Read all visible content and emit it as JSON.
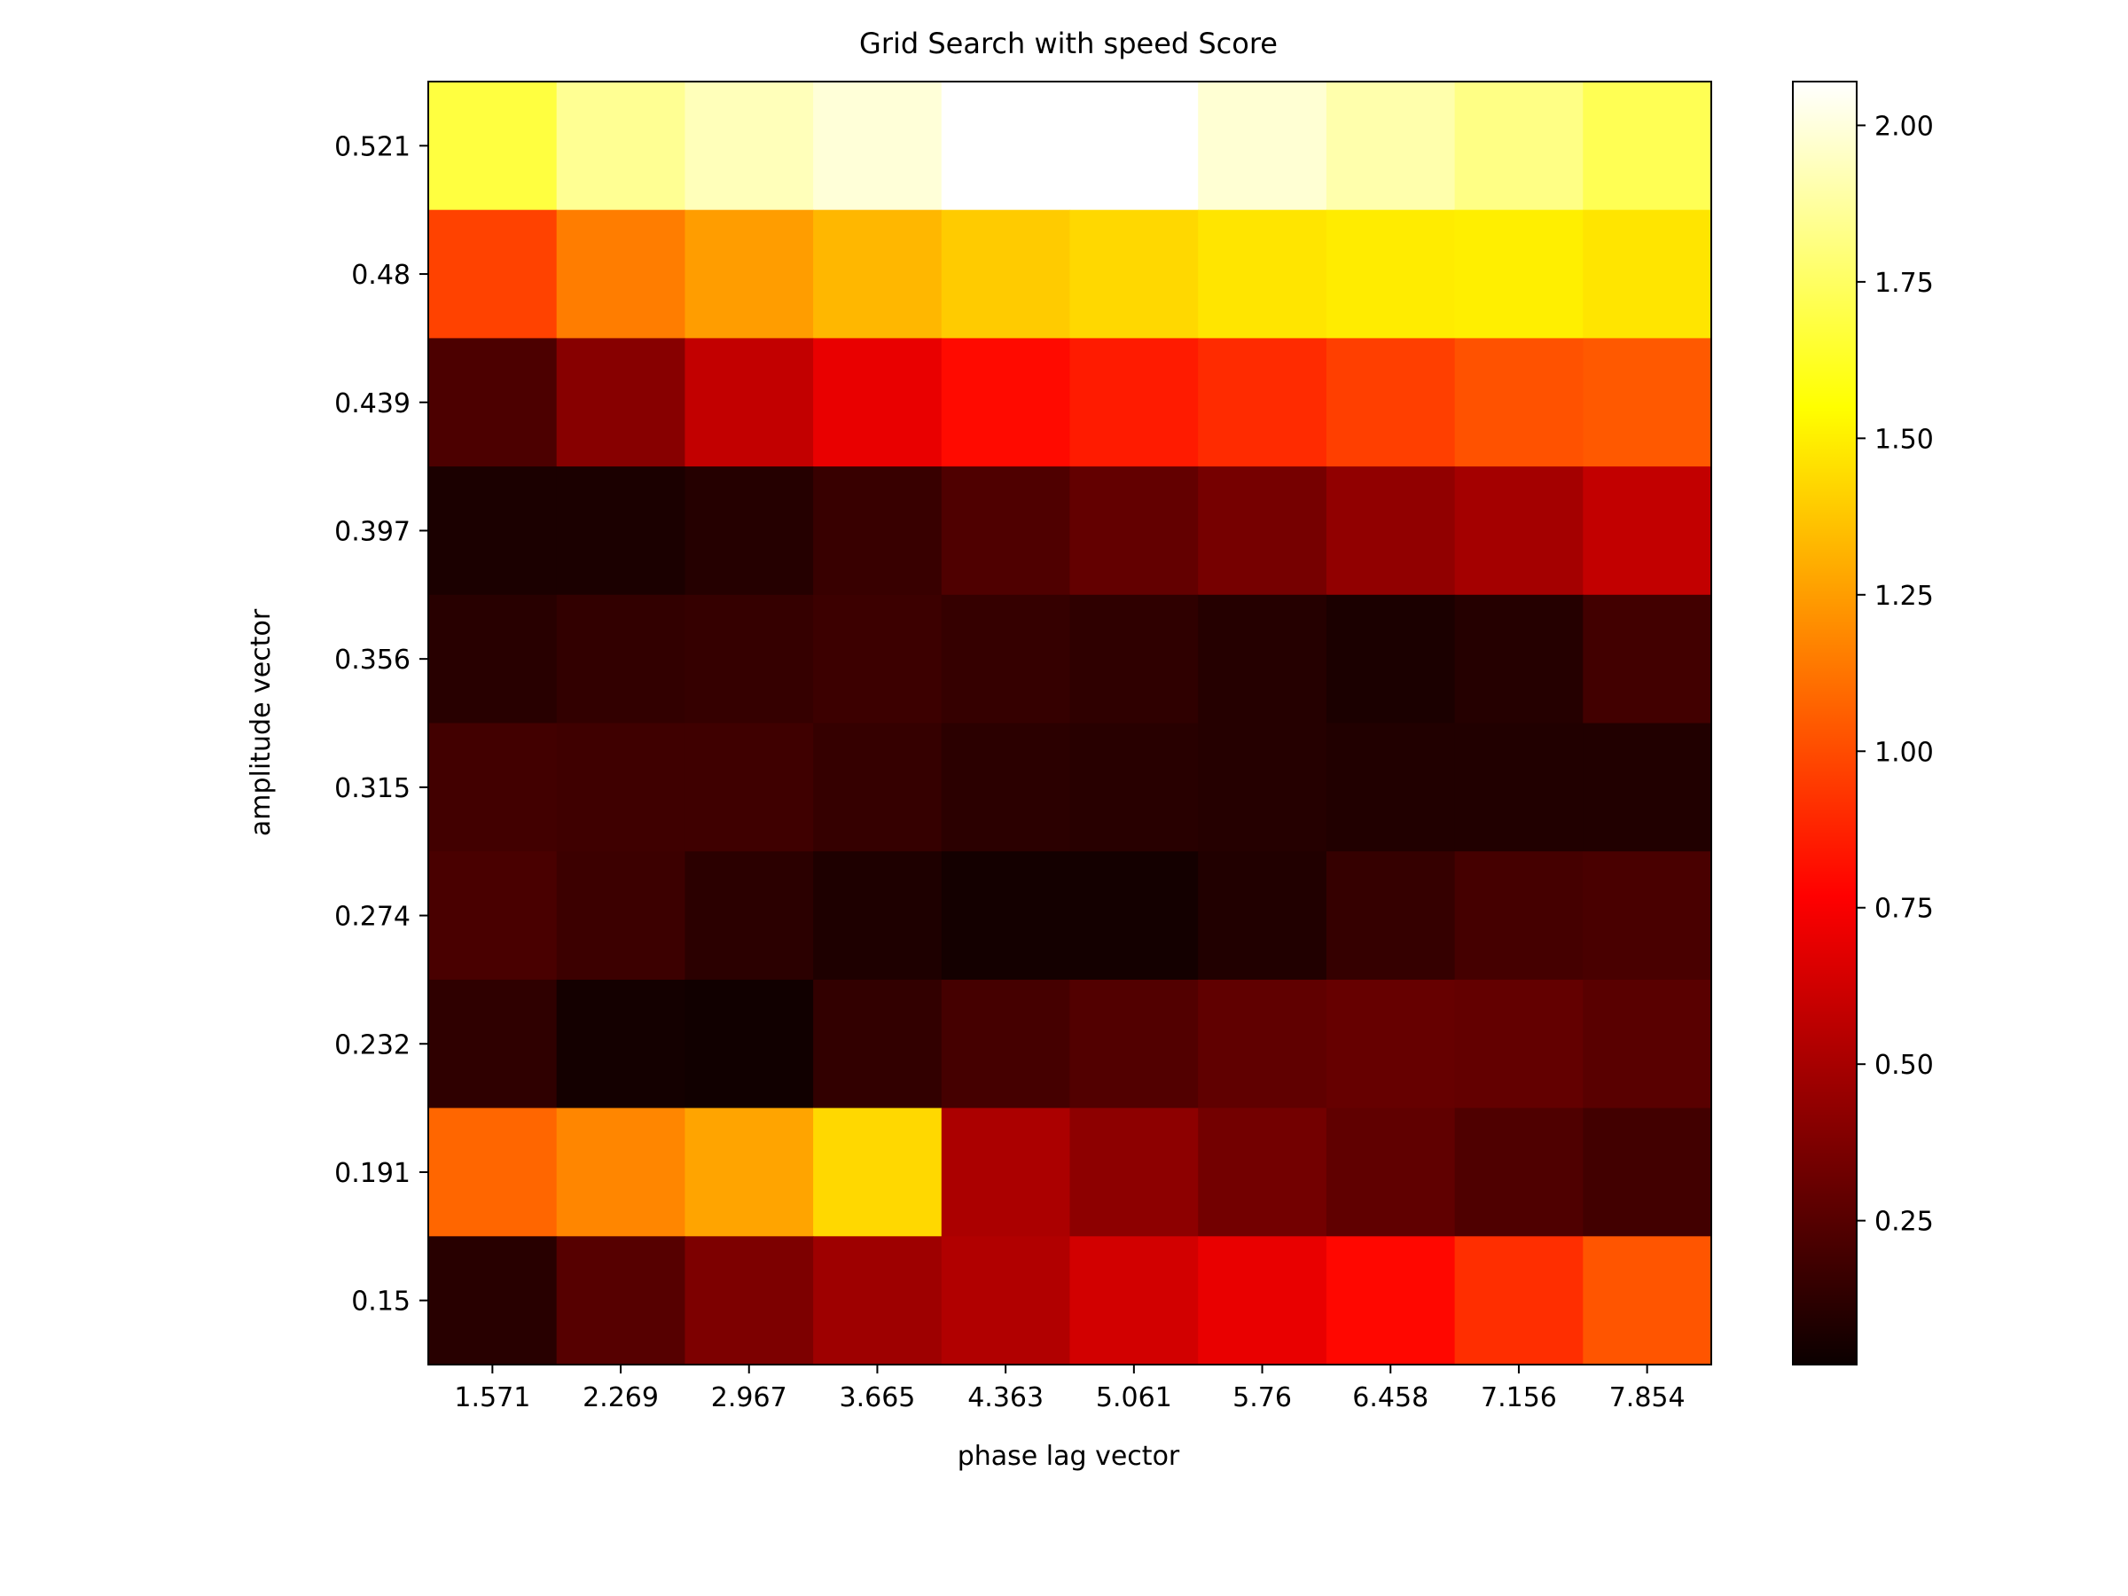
{
  "chart_data": {
    "type": "heatmap",
    "title": "Grid Search with speed Score",
    "xlabel": "phase lag vector",
    "ylabel": "amplitude vector",
    "x_categories": [
      "1.571",
      "2.269",
      "2.967",
      "3.665",
      "4.363",
      "5.061",
      "5.76",
      "6.458",
      "7.156",
      "7.854"
    ],
    "y_categories_top_to_bottom": [
      "0.521",
      "0.48",
      "0.439",
      "0.397",
      "0.356",
      "0.315",
      "0.274",
      "0.232",
      "0.191",
      "0.15"
    ],
    "values": [
      [
        1.68,
        1.85,
        1.93,
        1.99,
        2.07,
        2.07,
        1.98,
        1.9,
        1.82,
        1.72
      ],
      [
        0.97,
        1.15,
        1.25,
        1.33,
        1.39,
        1.43,
        1.47,
        1.49,
        1.5,
        1.47
      ],
      [
        0.22,
        0.4,
        0.58,
        0.7,
        0.8,
        0.85,
        0.9,
        0.96,
        1.02,
        1.04
      ],
      [
        0.07,
        0.07,
        0.1,
        0.16,
        0.23,
        0.29,
        0.35,
        0.43,
        0.49,
        0.58
      ],
      [
        0.11,
        0.14,
        0.15,
        0.17,
        0.15,
        0.13,
        0.1,
        0.07,
        0.1,
        0.19
      ],
      [
        0.19,
        0.18,
        0.18,
        0.15,
        0.12,
        0.11,
        0.1,
        0.09,
        0.09,
        0.09
      ],
      [
        0.21,
        0.17,
        0.12,
        0.08,
        0.05,
        0.05,
        0.09,
        0.15,
        0.2,
        0.21
      ],
      [
        0.13,
        0.05,
        0.04,
        0.14,
        0.2,
        0.24,
        0.28,
        0.3,
        0.29,
        0.26
      ],
      [
        1.08,
        1.18,
        1.27,
        1.43,
        0.51,
        0.42,
        0.34,
        0.28,
        0.23,
        0.19
      ],
      [
        0.11,
        0.25,
        0.37,
        0.47,
        0.53,
        0.63,
        0.7,
        0.79,
        0.91,
        1.03
      ]
    ],
    "colormap": "hot",
    "colorbar": {
      "vmin": 0.02,
      "vmax": 2.07,
      "ticks": [
        2.0,
        1.75,
        1.5,
        1.25,
        1.0,
        0.75,
        0.5,
        0.25
      ],
      "tick_labels": [
        "2.00",
        "1.75",
        "1.50",
        "1.25",
        "1.00",
        "0.75",
        "0.50",
        "0.25"
      ]
    },
    "grid": false
  }
}
